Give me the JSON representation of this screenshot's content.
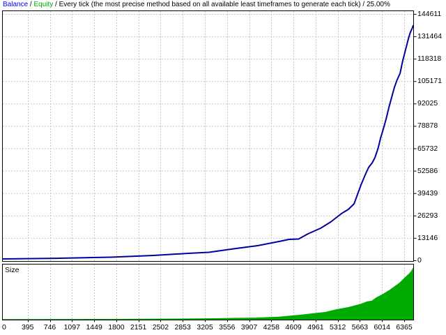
{
  "header": {
    "balance_label": "Balance",
    "sep": " / ",
    "equity_label": "Equity",
    "model_text": "Every tick (the most precise method based on all available least timeframes to generate each tick)",
    "quality_text": "25.00%"
  },
  "size_panel": {
    "label": "Size"
  },
  "colors": {
    "background": "#FFFFFF",
    "frame": "#000000",
    "grid": "#C6C6C6",
    "balance_line": "#0000A0",
    "equity_line": "#00AA00",
    "balance_text": "#0000FF",
    "equity_text": "#00AA00",
    "size_fill": "#00AA00",
    "label_text": "#000000"
  },
  "chart_data": [
    {
      "type": "line",
      "title": "Balance / Equity / Every tick (the most precise method based on all available least timeframes to generate each tick) / 25.00%",
      "xlabel": "",
      "ylabel": "",
      "grid": true,
      "legend_position": "top-left-header",
      "xlim": [
        0,
        6520
      ],
      "ylim": [
        0,
        144611
      ],
      "x_ticks": [
        0,
        395,
        746,
        1097,
        1449,
        1800,
        2151,
        2502,
        2853,
        3205,
        3556,
        3907,
        4258,
        4609,
        4961,
        5312,
        5663,
        6014,
        6365
      ],
      "y_ticks": [
        0,
        13146,
        26293,
        39439,
        52586,
        65732,
        78878,
        92025,
        105171,
        118318,
        131464,
        144611
      ],
      "series": [
        {
          "name": "Balance",
          "color": "#0000A0",
          "points": [
            [
              0,
              800
            ],
            [
              840,
              1200
            ],
            [
              1720,
              1850
            ],
            [
              2390,
              2870
            ],
            [
              2940,
              4100
            ],
            [
              3270,
              4700
            ],
            [
              3660,
              6760
            ],
            [
              4040,
              8600
            ],
            [
              4380,
              11060
            ],
            [
              4540,
              12290
            ],
            [
              4690,
              12500
            ],
            [
              4840,
              15570
            ],
            [
              5040,
              18840
            ],
            [
              5200,
              22530
            ],
            [
              5370,
              27450
            ],
            [
              5480,
              29900
            ],
            [
              5570,
              33180
            ],
            [
              5680,
              44240
            ],
            [
              5750,
              50390
            ],
            [
              5800,
              54480
            ],
            [
              5860,
              57350
            ],
            [
              5900,
              60220
            ],
            [
              5950,
              65550
            ],
            [
              5990,
              71690
            ],
            [
              6030,
              76610
            ],
            [
              6080,
              83160
            ],
            [
              6120,
              89300
            ],
            [
              6170,
              96270
            ],
            [
              6210,
              101590
            ],
            [
              6250,
              105690
            ],
            [
              6300,
              109790
            ],
            [
              6340,
              116750
            ],
            [
              6390,
              124130
            ],
            [
              6430,
              129860
            ],
            [
              6460,
              133550
            ],
            [
              6490,
              136000
            ],
            [
              6510,
              138050
            ]
          ]
        },
        {
          "name": "Equity",
          "color": "#00AA00",
          "points": [
            [
              0,
              800
            ],
            [
              840,
              1200
            ],
            [
              1720,
              1850
            ],
            [
              2390,
              2870
            ],
            [
              2940,
              4100
            ],
            [
              3270,
              4700
            ],
            [
              3660,
              6760
            ],
            [
              4040,
              8600
            ],
            [
              4380,
              11060
            ],
            [
              4540,
              12290
            ],
            [
              4690,
              12500
            ],
            [
              4840,
              15570
            ],
            [
              5040,
              18840
            ],
            [
              5200,
              22530
            ],
            [
              5370,
              27450
            ],
            [
              5480,
              29900
            ],
            [
              5570,
              33180
            ],
            [
              5680,
              44240
            ],
            [
              5750,
              50390
            ],
            [
              5800,
              54480
            ],
            [
              5860,
              57350
            ],
            [
              5900,
              60220
            ],
            [
              5950,
              65550
            ],
            [
              5990,
              71690
            ],
            [
              6030,
              76610
            ],
            [
              6080,
              83160
            ],
            [
              6120,
              89300
            ],
            [
              6170,
              96270
            ],
            [
              6210,
              101590
            ],
            [
              6250,
              105690
            ],
            [
              6300,
              109790
            ],
            [
              6340,
              116750
            ],
            [
              6390,
              124130
            ],
            [
              6430,
              129860
            ],
            [
              6460,
              133550
            ],
            [
              6490,
              136000
            ],
            [
              6510,
              138050
            ]
          ]
        }
      ]
    },
    {
      "type": "area",
      "title": "Size",
      "xlabel": "",
      "ylabel": "",
      "grid": true,
      "xlim": [
        0,
        6520
      ],
      "ylim": [
        0,
        1
      ],
      "series": [
        {
          "name": "Size",
          "color": "#00AA00",
          "points": [
            [
              0,
              0.004
            ],
            [
              1600,
              0.007
            ],
            [
              2700,
              0.013
            ],
            [
              3380,
              0.02
            ],
            [
              3640,
              0.026
            ],
            [
              4010,
              0.032
            ],
            [
              4380,
              0.05
            ],
            [
              4740,
              0.09
            ],
            [
              5120,
              0.14
            ],
            [
              5290,
              0.19
            ],
            [
              5480,
              0.23
            ],
            [
              5670,
              0.29
            ],
            [
              5780,
              0.34
            ],
            [
              5850,
              0.35
            ],
            [
              5920,
              0.41
            ],
            [
              6030,
              0.48
            ],
            [
              6140,
              0.56
            ],
            [
              6220,
              0.63
            ],
            [
              6290,
              0.69
            ],
            [
              6365,
              0.78
            ],
            [
              6440,
              0.86
            ],
            [
              6475,
              0.91
            ],
            [
              6500,
              0.96
            ],
            [
              6510,
              0.98
            ]
          ]
        }
      ]
    }
  ]
}
